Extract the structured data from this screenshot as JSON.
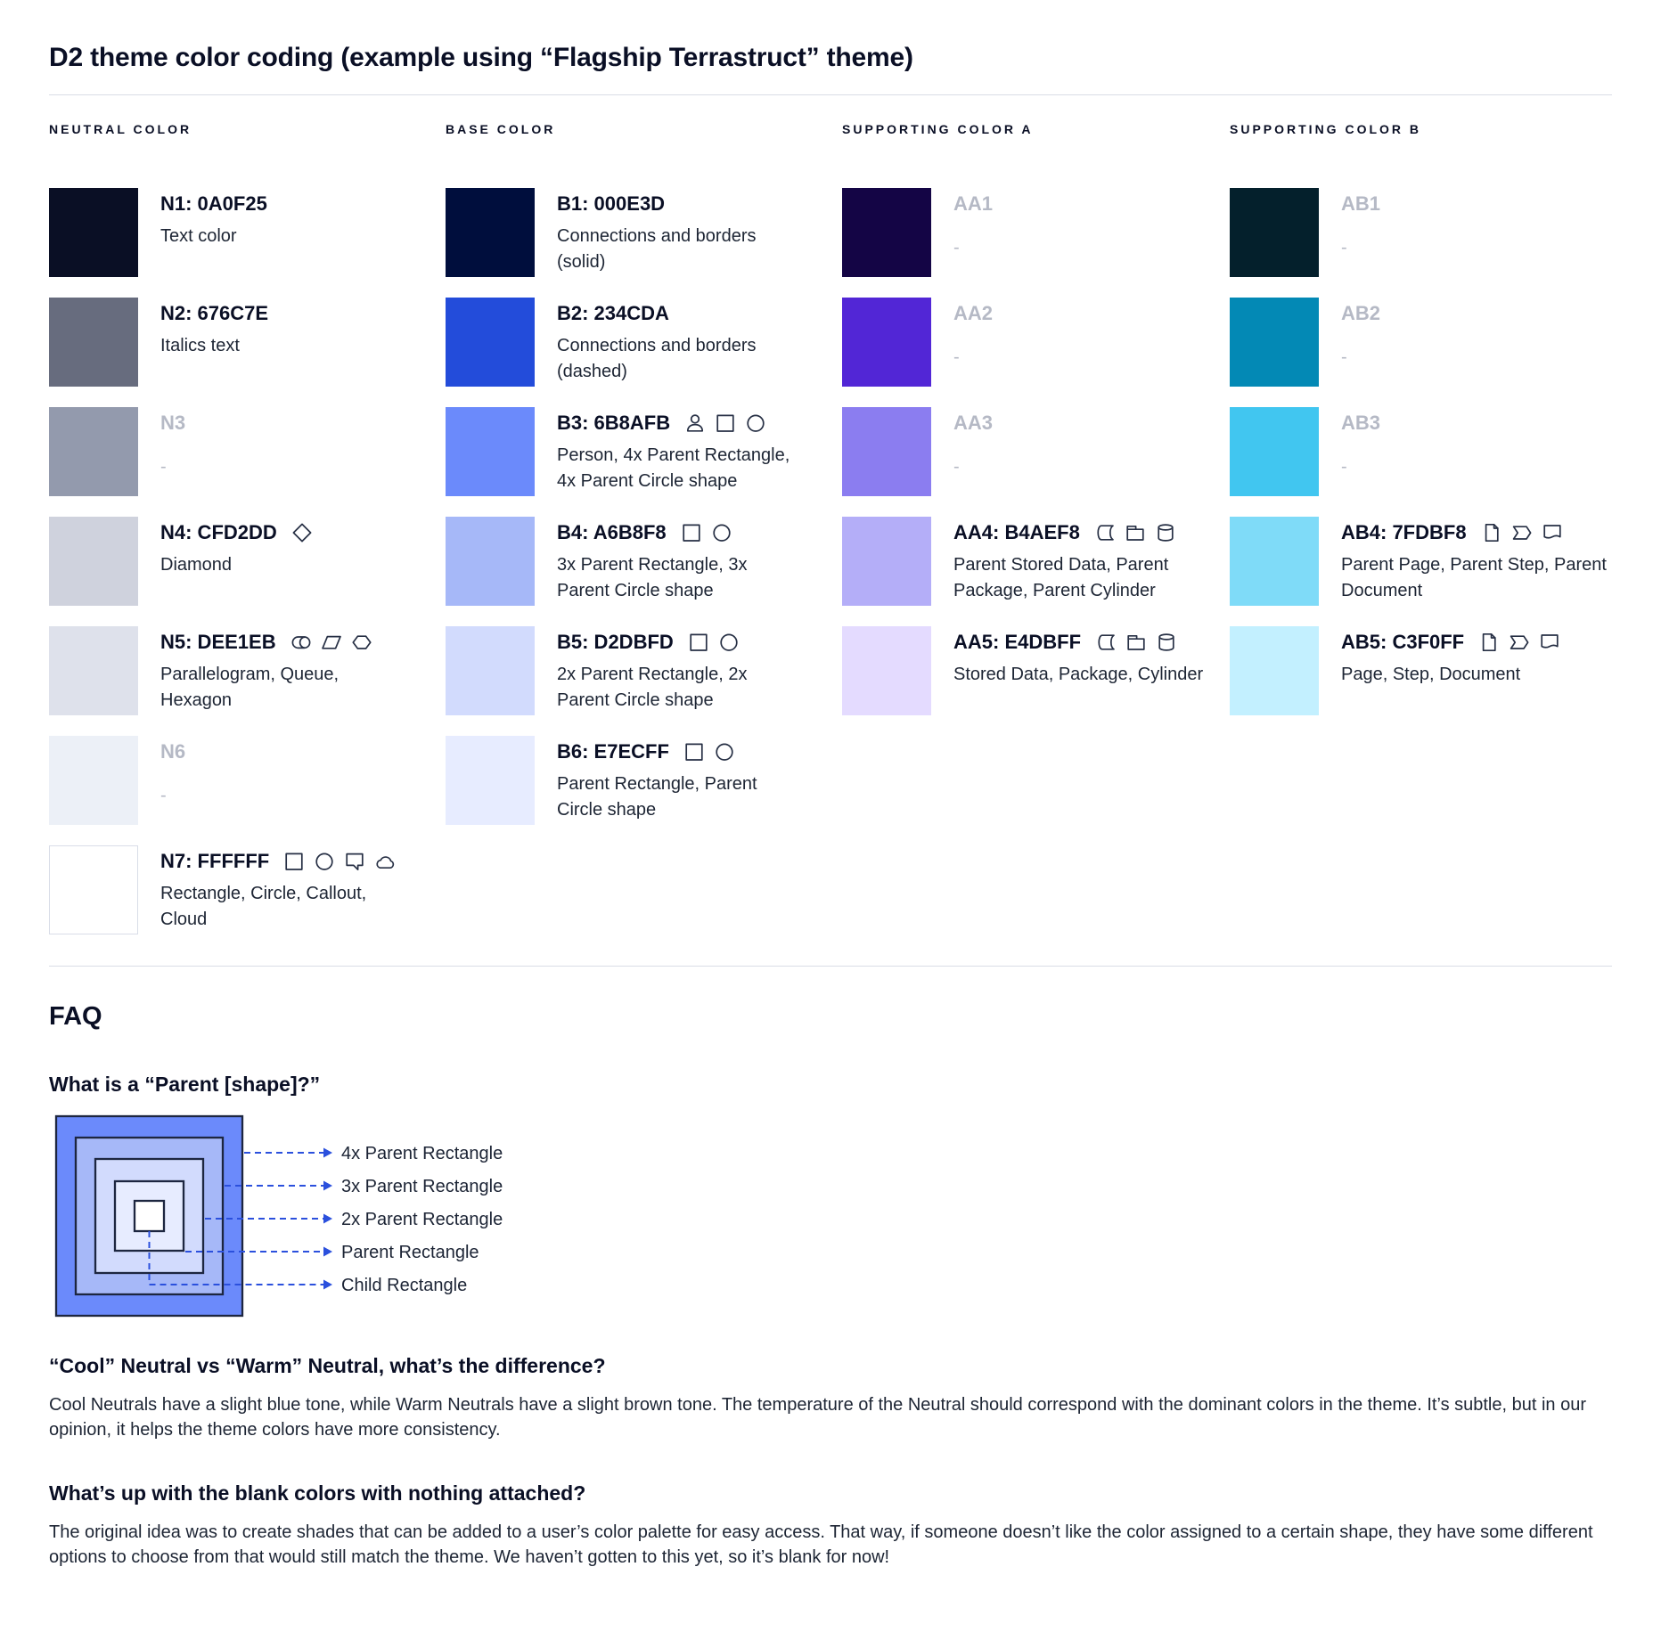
{
  "page": {
    "title": "D2 theme color coding (example using “Flagship Terrastruct” theme)"
  },
  "palette": {
    "columns": [
      {
        "header": "NEUTRAL COLOR",
        "rows": [
          {
            "label": "N1: 0A0F25",
            "color": "#0A0F25",
            "desc": "Text color",
            "icons": [],
            "muted": false
          },
          {
            "label": "N2: 676C7E",
            "color": "#676C7E",
            "desc": "Italics text",
            "icons": [],
            "muted": false
          },
          {
            "label": "N3",
            "color": "#939AAD",
            "desc": "-",
            "icons": [],
            "muted": true
          },
          {
            "label": "N4: CFD2DD",
            "color": "#CFD2DD",
            "desc": "Diamond",
            "icons": [
              "diamond"
            ],
            "muted": false
          },
          {
            "label": "N5: DEE1EB",
            "color": "#DEE1EB",
            "desc": "Parallelogram, Queue, Hexagon",
            "icons": [
              "queue",
              "parallelogram",
              "hexagon"
            ],
            "muted": false
          },
          {
            "label": "N6",
            "color": "#ECF0F7",
            "desc": "-",
            "icons": [],
            "muted": true
          },
          {
            "label": "N7: FFFFFF",
            "color": "#FFFFFF",
            "desc": "Rectangle, Circle, Callout, Cloud",
            "icons": [
              "rectangle",
              "circle",
              "callout",
              "cloud"
            ],
            "muted": false,
            "bordered": true
          }
        ]
      },
      {
        "header": "BASE COLOR",
        "rows": [
          {
            "label": "B1: 000E3D",
            "color": "#000E3D",
            "desc": "Connections and borders (solid)",
            "icons": [],
            "muted": false
          },
          {
            "label": "B2: 234CDA",
            "color": "#234CDA",
            "desc": "Connections and borders (dashed)",
            "icons": [],
            "muted": false
          },
          {
            "label": "B3: 6B8AFB",
            "color": "#6B8AFB",
            "desc": "Person, 4x Parent Rectangle, 4x Parent Circle shape",
            "icons": [
              "person",
              "rectangle",
              "circle"
            ],
            "muted": false
          },
          {
            "label": "B4: A6B8F8",
            "color": "#A6B8F8",
            "desc": "3x Parent Rectangle, 3x Parent Circle shape",
            "icons": [
              "rectangle",
              "circle"
            ],
            "muted": false
          },
          {
            "label": "B5: D2DBFD",
            "color": "#D2DBFD",
            "desc": "2x Parent Rectangle, 2x Parent Circle shape",
            "icons": [
              "rectangle",
              "circle"
            ],
            "muted": false
          },
          {
            "label": "B6: E7ECFF",
            "color": "#E7ECFF",
            "desc": "Parent Rectangle, Parent Circle shape",
            "icons": [
              "rectangle",
              "circle"
            ],
            "muted": false
          }
        ]
      },
      {
        "header": "SUPPORTING COLOR A",
        "rows": [
          {
            "label": "AA1",
            "color": "#140545",
            "desc": "-",
            "icons": [],
            "muted": true
          },
          {
            "label": "AA2",
            "color": "#5226D6",
            "desc": "-",
            "icons": [],
            "muted": true
          },
          {
            "label": "AA3",
            "color": "#8B7DF0",
            "desc": "-",
            "icons": [],
            "muted": true
          },
          {
            "label": "AA4: B4AEF8",
            "color": "#B4AEF8",
            "desc": "Parent Stored Data, Parent Package,  Parent Cylinder",
            "icons": [
              "stored-data",
              "package",
              "cylinder"
            ],
            "muted": false
          },
          {
            "label": "AA5: E4DBFF",
            "color": "#E4DBFF",
            "desc": "Stored Data, Package, Cylinder",
            "icons": [
              "stored-data",
              "package",
              "cylinder"
            ],
            "muted": false
          }
        ]
      },
      {
        "header": "SUPPORTING COLOR B",
        "rows": [
          {
            "label": "AB1",
            "color": "#04202C",
            "desc": "-",
            "icons": [],
            "muted": true
          },
          {
            "label": "AB2",
            "color": "#0389B5",
            "desc": "-",
            "icons": [],
            "muted": true
          },
          {
            "label": "AB3",
            "color": "#41C6F0",
            "desc": "-",
            "icons": [],
            "muted": true
          },
          {
            "label": "AB4: 7FDBF8",
            "color": "#7FDBF8",
            "desc": "Parent Page, Parent Step, Parent Document",
            "icons": [
              "page",
              "step",
              "document"
            ],
            "muted": false
          },
          {
            "label": "AB5: C3F0FF",
            "color": "#C3F0FF",
            "desc": "Page, Step, Document",
            "icons": [
              "page",
              "step",
              "document"
            ],
            "muted": false
          }
        ]
      }
    ]
  },
  "faq": {
    "title": "FAQ",
    "q1_heading": "What is a “Parent [shape]?”",
    "diagram": {
      "labels": [
        "4x Parent Rectangle",
        "3x Parent Rectangle",
        "2x Parent Rectangle",
        "Parent Rectangle",
        "Child Rectangle"
      ],
      "layers": [
        "#6B8AFB",
        "#A6B8F8",
        "#D2DBFD",
        "#E7ECFF",
        "#FFFFFF"
      ],
      "connector_color": "#2B50DD"
    },
    "q2_heading": "“Cool” Neutral vs “Warm” Neutral, what’s the difference?",
    "q2_body": "Cool Neutrals have a slight blue tone, while Warm Neutrals have a slight brown tone. The temperature of the Neutral should correspond with the dominant colors in the theme. It’s subtle, but in our opinion, it helps the theme colors have more consistency.",
    "q3_heading": "What’s up with the blank colors with nothing attached?",
    "q3_body": "The original idea was to create shades that can be added to a user’s color palette for easy access. That way, if someone doesn’t like the color assigned to a certain shape, they have some different options to choose from that would still match the theme. We haven’t gotten to this yet, so it’s blank for now!"
  }
}
